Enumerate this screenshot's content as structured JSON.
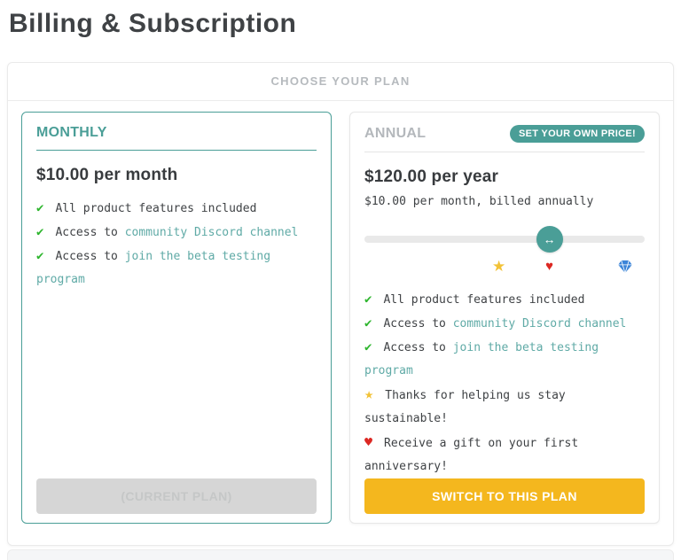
{
  "page": {
    "title": "Billing & Subscription"
  },
  "panel": {
    "header": "CHOOSE YOUR PLAN"
  },
  "plans": {
    "monthly": {
      "name": "MONTHLY",
      "price": "$10.00 per month",
      "features": [
        {
          "icon": "check-icon",
          "text": "All product features included",
          "link": ""
        },
        {
          "icon": "check-icon",
          "text": "Access to",
          "link": "community Discord channel"
        },
        {
          "icon": "check-icon",
          "text": "Access to",
          "link": "join the beta testing program"
        }
      ],
      "button": "(CURRENT PLAN)"
    },
    "annual": {
      "name": "ANNUAL",
      "badge": "SET YOUR OWN PRICE!",
      "price": "$120.00 per year",
      "subtext": "$10.00 per month, billed annually",
      "slider": {
        "handle_icon": "arrows-horizontal-icon",
        "handle_glyph": "↔",
        "handle_percent": 66,
        "markers": [
          {
            "icon": "star-icon",
            "percent": 48
          },
          {
            "icon": "heart-icon",
            "percent": 66
          },
          {
            "icon": "gem-icon",
            "percent": 93
          }
        ]
      },
      "features": [
        {
          "icon": "check-icon",
          "text": "All product features included",
          "link": ""
        },
        {
          "icon": "check-icon",
          "text": "Access to",
          "link": "community Discord channel"
        },
        {
          "icon": "check-icon",
          "text": "Access to",
          "link": "join the beta testing program"
        },
        {
          "icon": "star-icon",
          "text": "Thanks for helping us stay sustainable!",
          "link": ""
        },
        {
          "icon": "heart-icon",
          "text": "Receive a gift on your first anniversary!",
          "link": ""
        }
      ],
      "button": "SWITCH TO THIS PLAN"
    }
  },
  "colors": {
    "teal": "#4a9e97",
    "link_teal": "#5faaa6",
    "check_green": "#2db52d",
    "star_gold": "#f2c237",
    "heart_red": "#dc2823",
    "gem_blue": "#3d85d8",
    "button_gold": "#f4b71e",
    "current_plan_gray": "#d6d6d6"
  }
}
